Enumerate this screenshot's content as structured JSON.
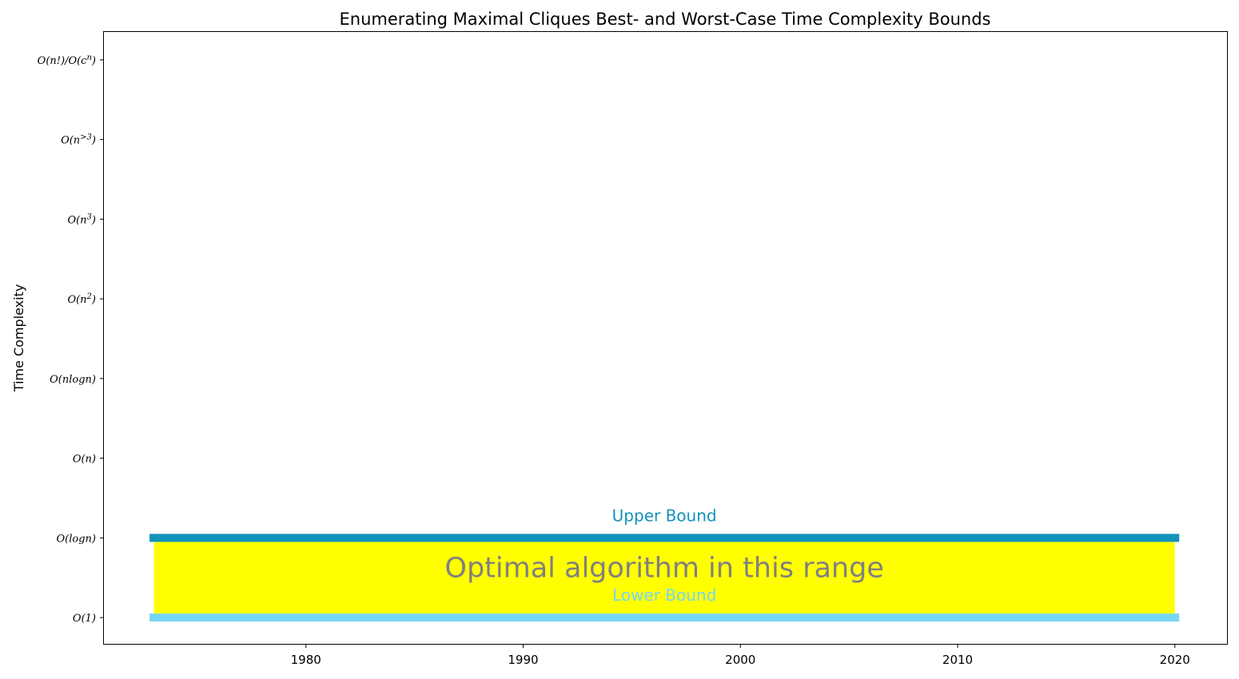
{
  "chart_data": {
    "type": "bar",
    "title": "Enumerating Maximal Cliques Best- and Worst-Case Time Complexity Bounds",
    "xlabel": "",
    "ylabel": "Time Complexity",
    "xlim": [
      1970.7,
      2022.4
    ],
    "ylim": [
      -0.33,
      7.35
    ],
    "x_ticks": [
      "1980",
      "1990",
      "2000",
      "2010",
      "2020"
    ],
    "x_tick_values": [
      1980,
      1990,
      2000,
      2010,
      2020
    ],
    "y_ticks": [
      {
        "base": "O(1)",
        "sup": ""
      },
      {
        "base": "O(logn)",
        "sup": ""
      },
      {
        "base": "O(n)",
        "sup": ""
      },
      {
        "base": "O(nlogn)",
        "sup": ""
      },
      {
        "base": "O(n",
        "sup": "2",
        "tail": ")"
      },
      {
        "base": "O(n",
        "sup": "3",
        "tail": ")"
      },
      {
        "base": "O(n",
        "sup": ">3",
        "tail": ")"
      },
      {
        "base": "O(n!)/O(c",
        "sup": "n",
        "tail": ")"
      }
    ],
    "y_tick_values": [
      0,
      1,
      2,
      3,
      4,
      5,
      6,
      7
    ],
    "grid": false,
    "series": [
      {
        "name": "Upper Bound",
        "x_range": [
          1972.8,
          2020.2
        ],
        "y": 1,
        "color": "#1393b9"
      },
      {
        "name": "Lower Bound",
        "x_range": [
          1972.8,
          2020.2
        ],
        "y": 0,
        "color": "#77d6f3"
      }
    ],
    "optimal_region": {
      "label": "Optimal algorithm in this range",
      "x_range": [
        1973.0,
        2020.0
      ],
      "y_range": [
        0.05,
        0.95
      ],
      "fill": "#ffff00",
      "text_color": "#808080"
    }
  }
}
